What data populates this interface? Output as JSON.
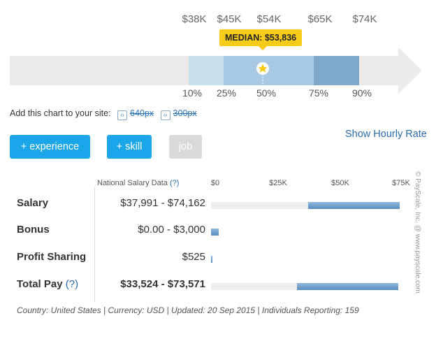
{
  "percentile_chart": {
    "top_labels": [
      "$38K",
      "$45K",
      "$54K",
      "$65K",
      "$74K"
    ],
    "bottom_labels": [
      "10%",
      "25%",
      "50%",
      "75%",
      "90%"
    ],
    "median_label": "MEDIAN: $53,836",
    "colors": {
      "track": "#ebebeb",
      "p10_25": "#c9e0ef",
      "p25_75": "#a8c9e3",
      "p75_90": "#7fa9cb",
      "median_star": "#f7cc18"
    },
    "star_icon": "star-icon"
  },
  "embed": {
    "label": "Add this chart to your site:",
    "link_640": "640px",
    "link_300": "300px"
  },
  "show_hourly": "Show Hourly Rate",
  "filters": {
    "experience": "+ experience",
    "skill": "+ skill",
    "job": "job"
  },
  "salary_table": {
    "source_label": "National Salary Data",
    "source_help": "(?)",
    "axis_ticks": [
      "$0",
      "$25K",
      "$50K",
      "$75K"
    ],
    "rows": [
      {
        "label": "Salary",
        "help": "",
        "range": "$37,991 - $74,162",
        "low": 37991,
        "high": 74162
      },
      {
        "label": "Bonus",
        "help": "",
        "range": "$0.00 - $3,000",
        "low": 0,
        "high": 3000
      },
      {
        "label": "Profit Sharing",
        "help": "",
        "range": "$525",
        "low": 0,
        "high": 525
      },
      {
        "label": "Total Pay",
        "help": "(?)",
        "range": "$33,524 - $73,571",
        "low": 33524,
        "high": 73571
      }
    ]
  },
  "footer": "Country: United States  |  Currency: USD  |  Updated: 20 Sep 2015  |  Individuals Reporting: 159",
  "copyright": "© PayScale, Inc. @ www.payscale.com"
}
